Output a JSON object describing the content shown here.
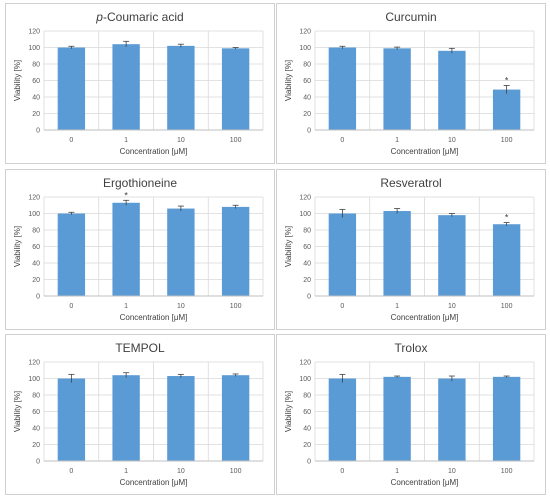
{
  "chart_data": [
    {
      "type": "bar",
      "title_prefix": "p",
      "title": "-Coumaric acid",
      "categories": [
        "0",
        "1",
        "10",
        "100"
      ],
      "values": [
        100,
        104,
        102,
        99
      ],
      "errors": [
        1.5,
        3.5,
        2,
        1
      ],
      "significance": [
        "",
        "",
        "",
        ""
      ],
      "xlabel": "Concentration [μM]",
      "ylabel": "Viability [%]",
      "ylim": [
        0,
        120
      ],
      "yticks": [
        0,
        20,
        40,
        60,
        80,
        100,
        120
      ],
      "grid": true,
      "bar_color": "#5b9bd5"
    },
    {
      "type": "bar",
      "title": "Curcumin",
      "categories": [
        "0",
        "1",
        "10",
        "100"
      ],
      "values": [
        100,
        99,
        96,
        49
      ],
      "errors": [
        1.5,
        1.5,
        3,
        5
      ],
      "significance": [
        "",
        "",
        "",
        "*"
      ],
      "xlabel": "Concentration [μM]",
      "ylabel": "Viability [%]",
      "ylim": [
        0,
        120
      ],
      "yticks": [
        0,
        20,
        40,
        60,
        80,
        100,
        120
      ],
      "grid": true,
      "bar_color": "#5b9bd5"
    },
    {
      "type": "bar",
      "title": "Ergothioneine",
      "categories": [
        "0",
        "1",
        "10",
        "100"
      ],
      "values": [
        100,
        113,
        106,
        108
      ],
      "errors": [
        1.5,
        3,
        3,
        2
      ],
      "significance": [
        "",
        "*",
        "",
        ""
      ],
      "xlabel": "Concentration [μM]",
      "ylabel": "Viability [%]",
      "ylim": [
        0,
        120
      ],
      "yticks": [
        0,
        20,
        40,
        60,
        80,
        100,
        120
      ],
      "grid": true,
      "bar_color": "#5b9bd5"
    },
    {
      "type": "bar",
      "title": "Resveratrol",
      "categories": [
        "0",
        "1",
        "10",
        "100"
      ],
      "values": [
        100,
        103,
        98,
        87
      ],
      "errors": [
        5,
        3,
        2,
        2
      ],
      "significance": [
        "",
        "",
        "",
        "*"
      ],
      "xlabel": "Concentration [μM]",
      "ylabel": "Viability [%]",
      "ylim": [
        0,
        120
      ],
      "yticks": [
        0,
        20,
        40,
        60,
        80,
        100,
        120
      ],
      "grid": true,
      "bar_color": "#5b9bd5"
    },
    {
      "type": "bar",
      "title": "TEMPOL",
      "categories": [
        "0",
        "1",
        "10",
        "100"
      ],
      "values": [
        100,
        104,
        103,
        104
      ],
      "errors": [
        5,
        3,
        2,
        1.5
      ],
      "significance": [
        "",
        "",
        "",
        ""
      ],
      "xlabel": "Concentration [μM]",
      "ylabel": "Viability [%]",
      "ylim": [
        0,
        120
      ],
      "yticks": [
        0,
        20,
        40,
        60,
        80,
        100,
        120
      ],
      "grid": true,
      "bar_color": "#5b9bd5"
    },
    {
      "type": "bar",
      "title": "Trolox",
      "categories": [
        "0",
        "1",
        "10",
        "100"
      ],
      "values": [
        100,
        102,
        100,
        102
      ],
      "errors": [
        5,
        1,
        3,
        1
      ],
      "significance": [
        "",
        "",
        "",
        ""
      ],
      "xlabel": "Concentration [μM]",
      "ylabel": "Viability [%]",
      "ylim": [
        0,
        120
      ],
      "yticks": [
        0,
        20,
        40,
        60,
        80,
        100,
        120
      ],
      "grid": true,
      "bar_color": "#5b9bd5"
    }
  ]
}
